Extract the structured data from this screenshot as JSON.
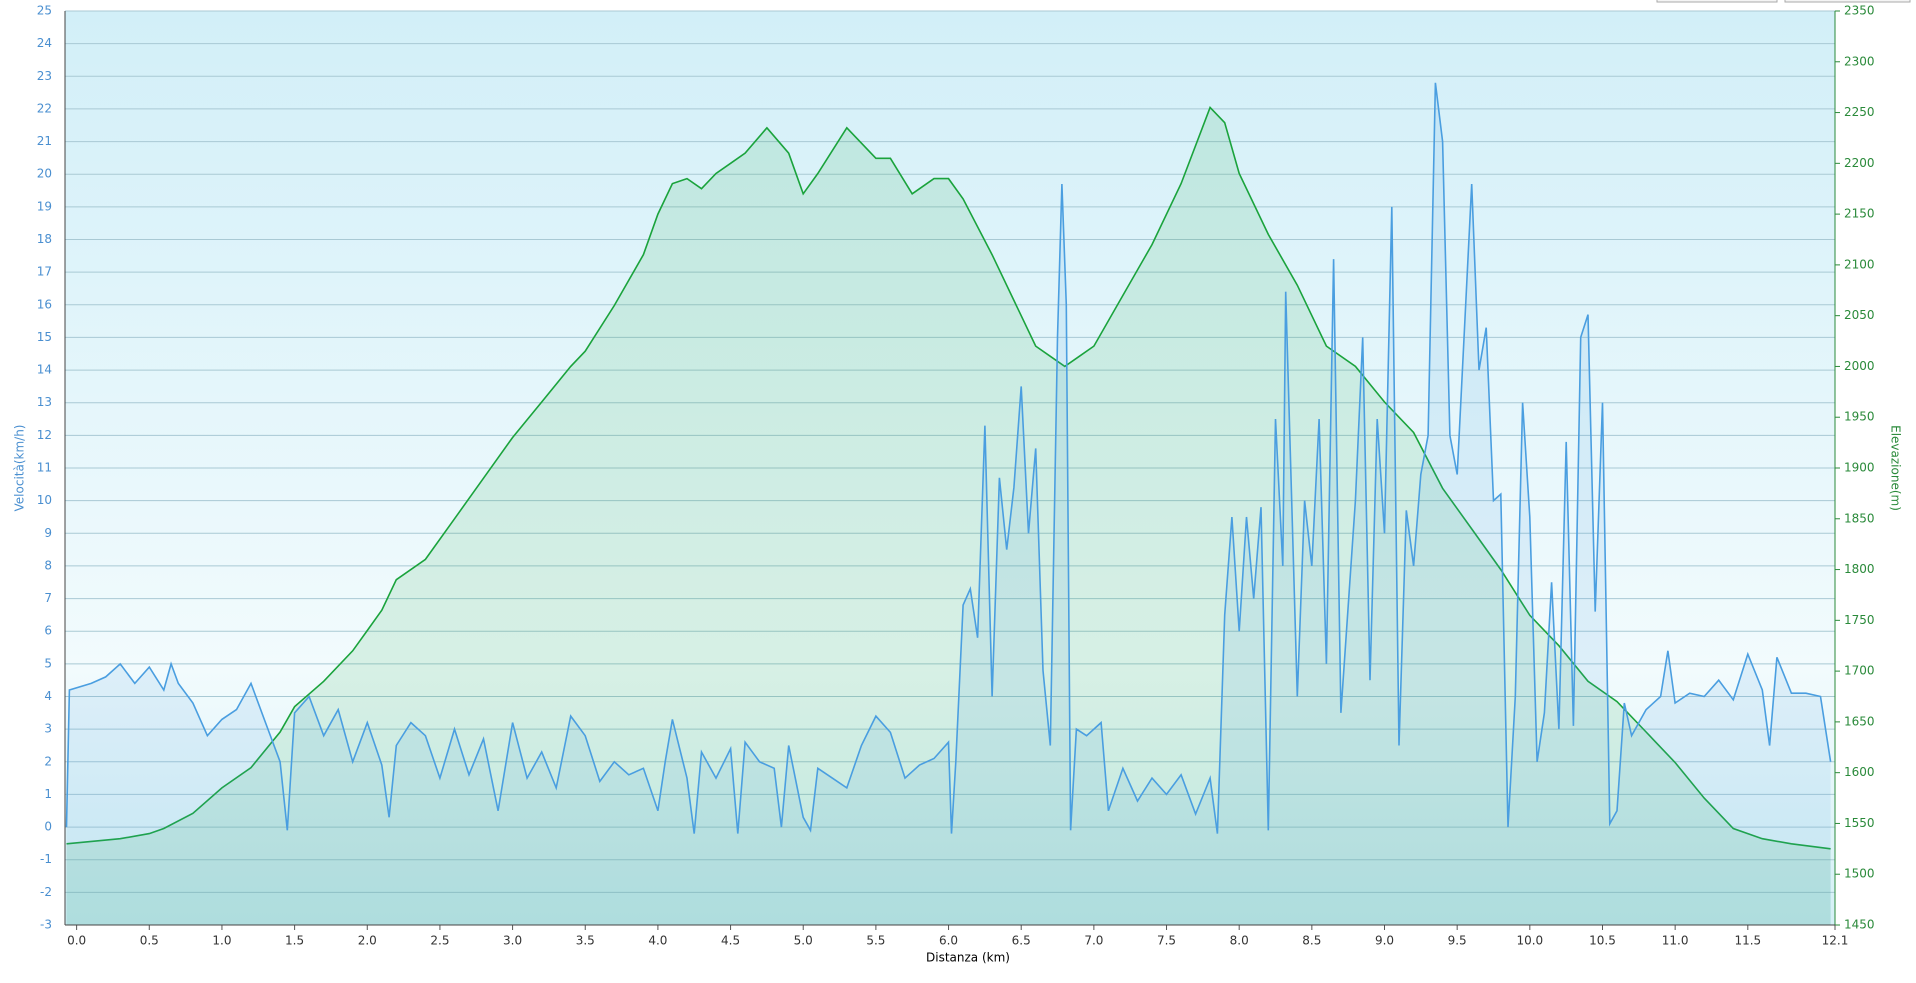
{
  "chart_data": {
    "type": "line",
    "x_label": "Distanza  (km)",
    "y_label": "Velocità(km/h)",
    "y2_label": "Elevazione(m)",
    "xlim": [
      -0.08,
      12.1
    ],
    "ylim": [
      -3,
      25
    ],
    "y2lim": [
      1450,
      2350
    ],
    "xticks": [
      {
        "value": 0,
        "label": "0.0"
      },
      0.5,
      {
        "value": 1,
        "label": "1.0"
      },
      1.5,
      {
        "value": 2,
        "label": "2.0"
      },
      2.5,
      {
        "value": 3,
        "label": "3.0"
      },
      3.5,
      {
        "value": 4,
        "label": "4.0"
      },
      4.5,
      {
        "value": 5,
        "label": "5.0"
      },
      5.5,
      {
        "value": 6,
        "label": "6.0"
      },
      6.5,
      {
        "value": 7,
        "label": "7.0"
      },
      7.5,
      {
        "value": 8,
        "label": "8.0"
      },
      8.5,
      {
        "value": 9,
        "label": "9.0"
      },
      9.5,
      {
        "value": 10,
        "label": "10.0"
      },
      10.5,
      {
        "value": 11,
        "label": "11.0"
      },
      11.5,
      12.1
    ],
    "yticks": [
      -3,
      -2,
      -1,
      0,
      1,
      2,
      3,
      4,
      5,
      6,
      7,
      8,
      9,
      10,
      11,
      12,
      13,
      14,
      15,
      16,
      17,
      18,
      19,
      20,
      21,
      22,
      23,
      24,
      25
    ],
    "y2ticks": [
      1450,
      1500,
      1550,
      1600,
      1650,
      1700,
      1750,
      1800,
      1850,
      1900,
      1950,
      2000,
      2050,
      2100,
      2150,
      2200,
      2250,
      2300,
      2350
    ],
    "grid": true,
    "series": [
      {
        "name": "Velocità",
        "color": "#4a9ee0",
        "x": [
          -0.07,
          -0.05,
          0.1,
          0.2,
          0.3,
          0.4,
          0.5,
          0.6,
          0.65,
          0.7,
          0.8,
          0.9,
          1.0,
          1.1,
          1.2,
          1.3,
          1.4,
          1.45,
          1.5,
          1.6,
          1.7,
          1.8,
          1.9,
          2.0,
          2.1,
          2.15,
          2.2,
          2.3,
          2.4,
          2.5,
          2.6,
          2.7,
          2.8,
          2.9,
          3.0,
          3.1,
          3.2,
          3.3,
          3.4,
          3.5,
          3.6,
          3.7,
          3.8,
          3.9,
          4.0,
          4.05,
          4.1,
          4.2,
          4.25,
          4.3,
          4.4,
          4.5,
          4.55,
          4.6,
          4.7,
          4.8,
          4.85,
          4.9,
          5.0,
          5.05,
          5.1,
          5.2,
          5.3,
          5.4,
          5.5,
          5.6,
          5.7,
          5.8,
          5.9,
          6.0,
          6.02,
          6.05,
          6.1,
          6.15,
          6.2,
          6.25,
          6.3,
          6.35,
          6.4,
          6.45,
          6.5,
          6.55,
          6.6,
          6.65,
          6.7,
          6.75,
          6.78,
          6.81,
          6.84,
          6.88,
          6.95,
          7.05,
          7.1,
          7.2,
          7.3,
          7.4,
          7.5,
          7.6,
          7.7,
          7.8,
          7.85,
          7.9,
          7.95,
          8.0,
          8.05,
          8.1,
          8.15,
          8.2,
          8.25,
          8.3,
          8.32,
          8.4,
          8.45,
          8.5,
          8.55,
          8.6,
          8.65,
          8.7,
          8.8,
          8.85,
          8.9,
          8.95,
          9.0,
          9.05,
          9.1,
          9.15,
          9.2,
          9.25,
          9.3,
          9.35,
          9.4,
          9.45,
          9.5,
          9.6,
          9.65,
          9.7,
          9.75,
          9.8,
          9.85,
          9.9,
          9.95,
          10.0,
          10.05,
          10.1,
          10.15,
          10.2,
          10.25,
          10.3,
          10.35,
          10.4,
          10.45,
          10.5,
          10.55,
          10.6,
          10.65,
          10.7,
          10.8,
          10.9,
          10.95,
          11.0,
          11.1,
          11.2,
          11.3,
          11.4,
          11.5,
          11.6,
          11.65,
          11.7,
          11.8,
          11.9,
          12.0,
          12.07
        ],
        "values": [
          0,
          4.2,
          4.4,
          4.6,
          5,
          4.4,
          4.9,
          4.2,
          5,
          4.4,
          3.8,
          2.8,
          3.3,
          3.6,
          4.4,
          3.2,
          2,
          -0.1,
          3.5,
          4,
          2.8,
          3.6,
          2,
          3.2,
          1.9,
          0.3,
          2.5,
          3.2,
          2.8,
          1.5,
          3,
          1.6,
          2.7,
          0.5,
          3.2,
          1.5,
          2.3,
          1.2,
          3.4,
          2.8,
          1.4,
          2,
          1.6,
          1.8,
          0.5,
          2,
          3.3,
          1.5,
          -0.2,
          2.3,
          1.5,
          2.4,
          -0.2,
          2.6,
          2,
          1.8,
          0,
          2.5,
          0.3,
          -0.1,
          1.8,
          1.5,
          1.2,
          2.5,
          3.4,
          2.9,
          1.5,
          1.9,
          2.1,
          2.6,
          -0.2,
          2,
          6.8,
          7.3,
          5.8,
          12.3,
          4,
          10.7,
          8.5,
          10.4,
          13.5,
          9,
          11.6,
          4.8,
          2.5,
          15,
          19.7,
          16,
          -0.1,
          3,
          2.8,
          3.2,
          0.5,
          1.8,
          0.8,
          1.5,
          1,
          1.6,
          0.4,
          1.5,
          -0.2,
          6.5,
          9.5,
          6,
          9.5,
          7,
          9.8,
          -0.1,
          12.5,
          8,
          16.4,
          4,
          10,
          8,
          12.5,
          5,
          17.4,
          3.5,
          10,
          15,
          4.5,
          12.5,
          9,
          19,
          2.5,
          9.7,
          8,
          10.8,
          12,
          22.8,
          21,
          12,
          10.8,
          19.7,
          14,
          15.3,
          10,
          10.2,
          0,
          4,
          13,
          9.5,
          2,
          3.5,
          7.5,
          3,
          11.8,
          3.1,
          15,
          15.7,
          6.6,
          13,
          0.1,
          0.5,
          3.8,
          2.8,
          3.6,
          4,
          5.4,
          3.8,
          4.1,
          4,
          4.5,
          3.9,
          5.3,
          4.2,
          2.5,
          5.2,
          4.1,
          4.1,
          4,
          2
        ]
      },
      {
        "name": "Elevazione",
        "color": "#1aa33c",
        "axis": "y2",
        "x": [
          -0.07,
          0.3,
          0.5,
          0.6,
          0.8,
          1.0,
          1.2,
          1.4,
          1.5,
          1.7,
          1.9,
          2.0,
          2.1,
          2.2,
          2.4,
          2.6,
          2.8,
          3.0,
          3.2,
          3.4,
          3.5,
          3.7,
          3.9,
          4.0,
          4.1,
          4.2,
          4.3,
          4.4,
          4.5,
          4.6,
          4.75,
          4.9,
          5.0,
          5.1,
          5.3,
          5.5,
          5.6,
          5.75,
          5.9,
          6.0,
          6.1,
          6.3,
          6.5,
          6.6,
          6.7,
          6.8,
          6.9,
          7.0,
          7.2,
          7.4,
          7.6,
          7.8,
          7.9,
          8.0,
          8.2,
          8.4,
          8.6,
          8.8,
          9.0,
          9.2,
          9.4,
          9.6,
          9.8,
          10.0,
          10.2,
          10.4,
          10.6,
          10.8,
          11.0,
          11.2,
          11.4,
          11.6,
          11.8,
          12.07
        ],
        "values": [
          1530,
          1535,
          1540,
          1545,
          1560,
          1585,
          1605,
          1640,
          1665,
          1690,
          1720,
          1740,
          1760,
          1790,
          1810,
          1850,
          1890,
          1930,
          1965,
          2000,
          2015,
          2060,
          2110,
          2150,
          2180,
          2185,
          2175,
          2190,
          2200,
          2210,
          2235,
          2210,
          2170,
          2190,
          2235,
          2205,
          2205,
          2170,
          2185,
          2185,
          2165,
          2110,
          2050,
          2020,
          2010,
          2000,
          2010,
          2020,
          2070,
          2120,
          2180,
          2255,
          2240,
          2190,
          2130,
          2080,
          2020,
          2000,
          1965,
          1935,
          1880,
          1840,
          1800,
          1755,
          1725,
          1690,
          1670,
          1640,
          1610,
          1575,
          1545,
          1535,
          1530,
          1525
        ]
      }
    ]
  }
}
